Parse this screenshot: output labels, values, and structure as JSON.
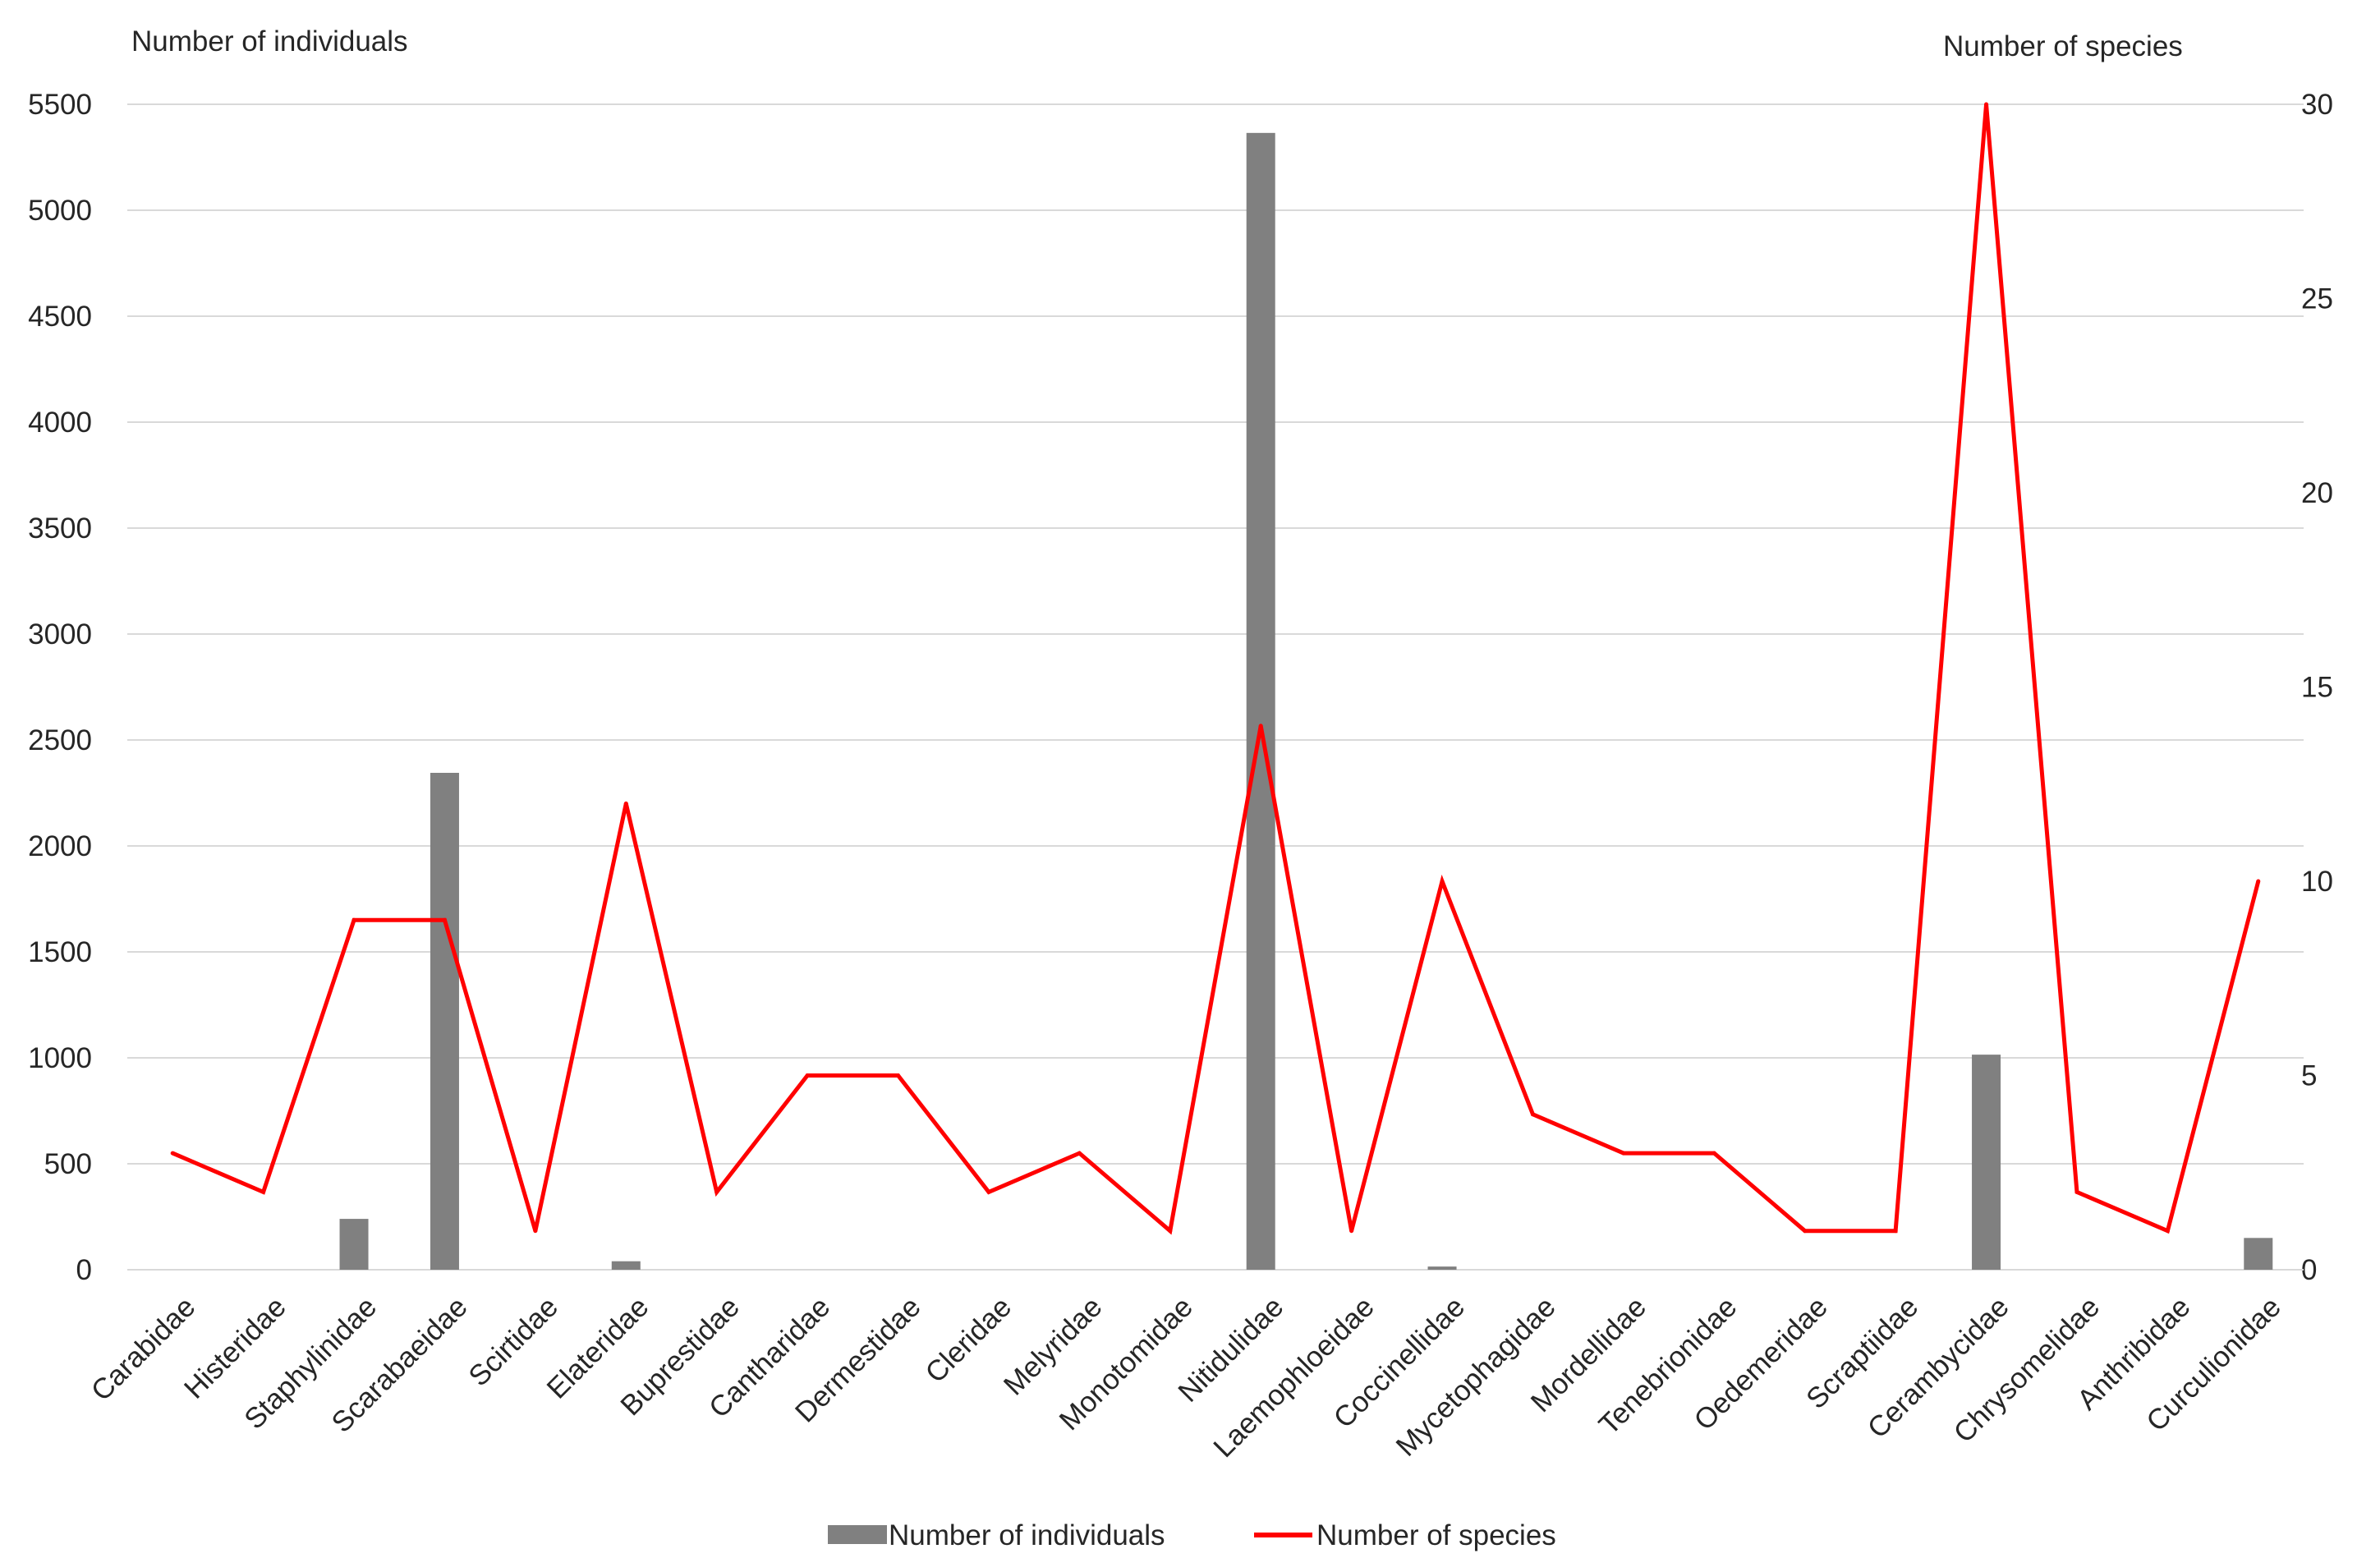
{
  "chart_data": {
    "type": "bar+line",
    "title": "",
    "categories": [
      "Carabidae",
      "Histeridae",
      "Staphylinidae",
      "Scarabaeidae",
      "Scirtidae",
      "Elateridae",
      "Buprestidae",
      "Cantharidae",
      "Dermestidae",
      "Cleridae",
      "Melyridae",
      "Monotomidae",
      "Nitidulidae",
      "Laemophloeidae",
      "Coccinellidae",
      "Mycetophagidae",
      "Mordellidae",
      "Tenebrionidae",
      "Oedemeridae",
      "Scraptiidae",
      "Cerambycidae",
      "Chrysomelidae",
      "Anthribidae",
      "Curculionidae"
    ],
    "series": [
      {
        "name": "Number of individuals",
        "type": "bar",
        "axis": "left",
        "color": "#808080",
        "values": [
          0,
          0,
          240,
          2345,
          0,
          40,
          0,
          0,
          0,
          0,
          0,
          0,
          5365,
          0,
          15,
          0,
          0,
          0,
          0,
          0,
          1015,
          0,
          0,
          150
        ]
      },
      {
        "name": "Number of species",
        "type": "line",
        "axis": "right",
        "color": "#ff0000",
        "values": [
          3,
          2,
          9,
          9,
          1,
          12,
          2,
          5,
          5,
          2,
          3,
          1,
          14,
          1,
          10,
          4,
          3,
          3,
          1,
          1,
          30,
          2,
          1,
          10
        ]
      }
    ],
    "left_axis": {
      "label": "Number of individuals",
      "min": 0,
      "max": 5500,
      "step": 500
    },
    "right_axis": {
      "label": "Number of species",
      "min": 0,
      "max": 30,
      "step": 5
    },
    "grid": true,
    "legend_position": "bottom"
  }
}
